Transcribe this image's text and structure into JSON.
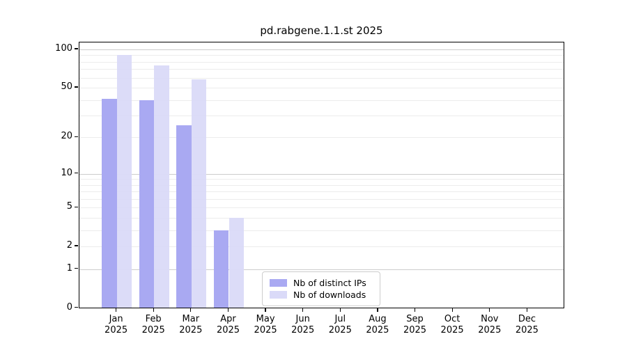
{
  "chart_data": {
    "type": "bar",
    "title": "pd.rabgene.1.1.st 2025",
    "categories": [
      "Jan",
      "Feb",
      "Mar",
      "Apr",
      "May",
      "Jun",
      "Jul",
      "Aug",
      "Sep",
      "Oct",
      "Nov",
      "Dec"
    ],
    "year_label": "2025",
    "series": [
      {
        "name": "Nb of distinct IPs",
        "color": "#a9a9f2",
        "values": [
          41,
          40,
          25,
          3,
          0,
          0,
          0,
          0,
          0,
          0,
          0,
          0
        ]
      },
      {
        "name": "Nb of downloads",
        "color": "#dadaf8",
        "values": [
          91,
          75,
          58,
          4,
          0,
          0,
          0,
          0,
          0,
          0,
          0,
          0
        ]
      }
    ],
    "yscale": "log1p",
    "y_ticks": [
      0,
      1,
      2,
      5,
      10,
      20,
      50,
      100
    ],
    "y_minor_gridlines": [
      2,
      3,
      4,
      5,
      6,
      7,
      8,
      9,
      20,
      30,
      40,
      50,
      60,
      70,
      80,
      90
    ],
    "y_major_gridlines": [
      1,
      10,
      100
    ],
    "ylim": [
      0,
      112
    ],
    "grid": true,
    "legend_position": "lower-center-inside",
    "colors": {
      "axis": "#000000",
      "grid_major": "#cccccc",
      "grid_minor": "#ececec",
      "background": "#ffffff"
    }
  }
}
